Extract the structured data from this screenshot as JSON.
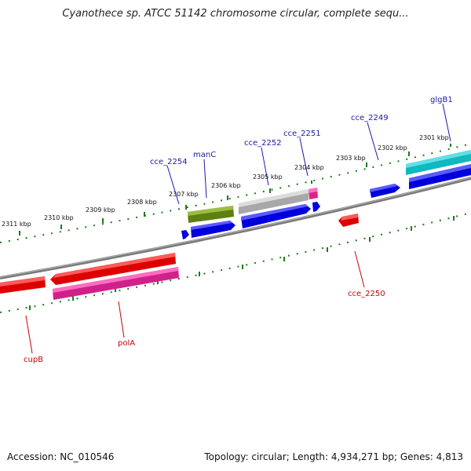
{
  "title": "Cyanothece sp. ATCC 51142 chromosome circular, complete sequ...",
  "footer": {
    "accession": "Accession: NC_010546",
    "summary": "Topology: circular; Length: 4,934,271 bp; Genes: 4,813"
  },
  "colors": {
    "backbone": "#808080",
    "ticks": "#1d7a1d",
    "label_top": "#1a1aa8",
    "label_bottom": "#cc0000"
  },
  "tick_labels": [
    "2301 kbp",
    "2302 kbp",
    "2303 kbp",
    "2304 kbp",
    "2305 kbp",
    "2306 kbp",
    "2307 kbp",
    "2308 kbp",
    "2309 kbp",
    "2310 kbp",
    "2311 kbp"
  ],
  "gene_labels": [
    {
      "text": "glgB1",
      "group": "top"
    },
    {
      "text": "cce_2249",
      "group": "top"
    },
    {
      "text": "cce_2251",
      "group": "top"
    },
    {
      "text": "cce_2252",
      "group": "top"
    },
    {
      "text": "manC",
      "group": "top"
    },
    {
      "text": "cce_2254",
      "group": "top"
    },
    {
      "text": "cce_2250",
      "group": "bottom"
    },
    {
      "text": "polA",
      "group": "bottom"
    },
    {
      "text": "cupB",
      "group": "bottom"
    }
  ]
}
